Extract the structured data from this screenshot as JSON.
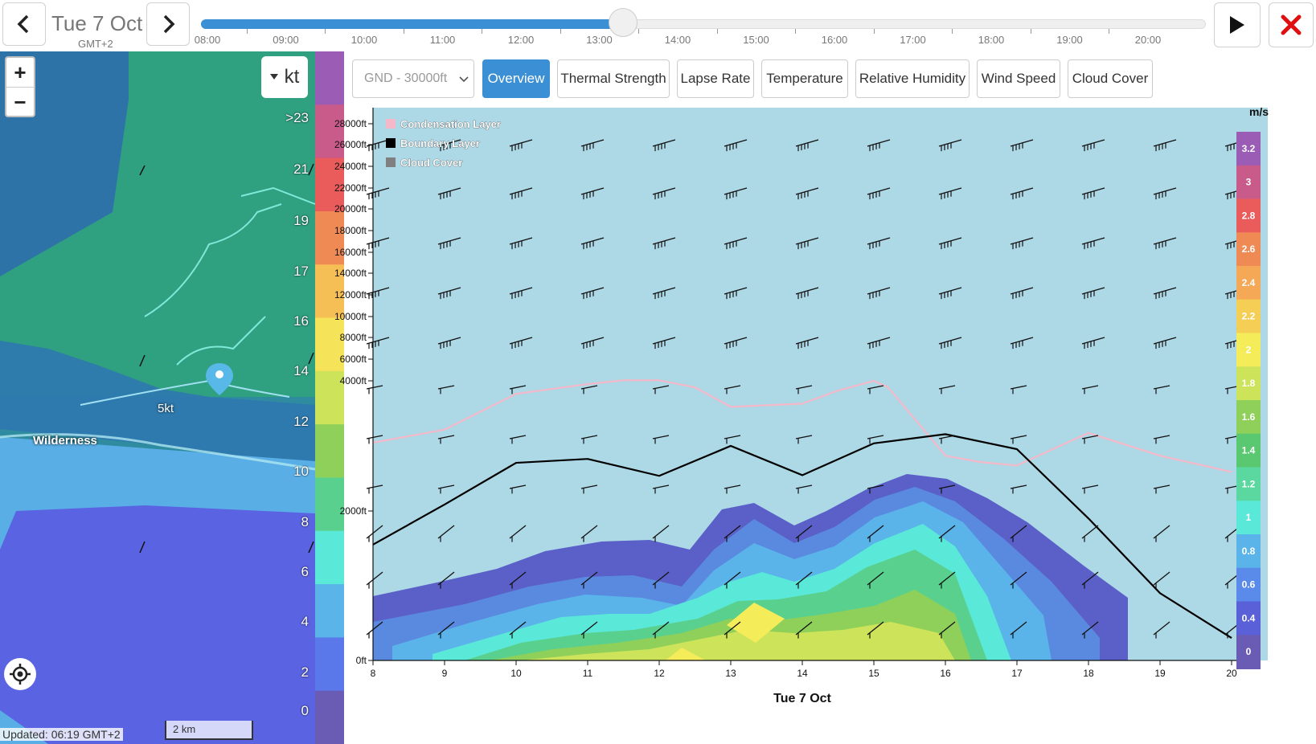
{
  "header": {
    "prev_label": "‹",
    "next_label": "›",
    "date": "Tue 7 Oct",
    "timezone": "GMT+2",
    "play_icon": "play-icon",
    "close_icon": "close-icon"
  },
  "timeline": {
    "labels": [
      "08:00",
      "09:00",
      "10:00",
      "11:00",
      "12:00",
      "13:00",
      "14:00",
      "15:00",
      "16:00",
      "17:00",
      "18:00",
      "19:00",
      "20:00"
    ],
    "progress": 0.42
  },
  "map": {
    "zoom_in": "+",
    "zoom_out": "−",
    "unit": "kt",
    "place_label": "Wilderness",
    "wind_label": "5kt",
    "updated": "Updated: 06:19 GMT+2",
    "scale": "2 km",
    "legend_values": [
      ">23",
      "21",
      "19",
      "17",
      "16",
      "14",
      "12",
      "10",
      "8",
      "6",
      "4",
      "2",
      "0"
    ],
    "legend_colors": [
      "#9a5cb4",
      "#c95b8a",
      "#ea5b5b",
      "#f08a55",
      "#f5bf55",
      "#f5e35a",
      "#cde35a",
      "#8ed05a",
      "#5ad08e",
      "#5ae8d8",
      "#5ab4ea",
      "#5a78ea",
      "#6a5cb4"
    ]
  },
  "controls": {
    "altitude_select": "GND - 30000ft",
    "tabs": [
      {
        "label": "Overview",
        "active": true
      },
      {
        "label": "Thermal Strength",
        "active": false
      },
      {
        "label": "Lapse Rate",
        "active": false
      },
      {
        "label": "Temperature",
        "active": false
      },
      {
        "label": "Relative Humidity",
        "active": false
      },
      {
        "label": "Wind Speed",
        "active": false
      },
      {
        "label": "Cloud Cover",
        "active": false
      }
    ]
  },
  "chart_data": {
    "type": "area",
    "xlabel": "Tue 7 Oct",
    "x_ticks": [
      "8",
      "9",
      "10",
      "11",
      "12",
      "13",
      "14",
      "15",
      "16",
      "17",
      "18",
      "19",
      "20"
    ],
    "y_ticks": [
      "28000ft",
      "26000ft",
      "24000ft",
      "22000ft",
      "20000ft",
      "18000ft",
      "16000ft",
      "14000ft",
      "12000ft",
      "10000ft",
      "8000ft",
      "6000ft",
      "4000ft",
      "2000ft",
      "0ft"
    ],
    "legend": [
      "Condensation Layer",
      "Boundary Layer",
      "Cloud Cover"
    ],
    "legend_colors": [
      "#f4b8c8",
      "#000000",
      "#808080"
    ],
    "colorbar_unit": "m/s",
    "colorbar_values": [
      "3.2",
      "3",
      "2.8",
      "2.6",
      "2.4",
      "2.2",
      "2",
      "1.8",
      "1.6",
      "1.4",
      "1.2",
      "1",
      "0.8",
      "0.6",
      "0.4",
      "0"
    ],
    "colorbar_colors": [
      "#9a5cb4",
      "#c95b8a",
      "#ea5b5b",
      "#f08a55",
      "#f5a855",
      "#f5cf55",
      "#f5ec5a",
      "#cde35a",
      "#8ed05a",
      "#5ac870",
      "#5ad8a0",
      "#5ae8d8",
      "#5ab4ea",
      "#5a8aea",
      "#5a60d8",
      "#6a5cb4"
    ],
    "series": [
      {
        "name": "Condensation Layer",
        "x": [
          8,
          9,
          10,
          11,
          11.5,
          12,
          12.5,
          13,
          14,
          14.5,
          15,
          15.2,
          16,
          16.5,
          17,
          18,
          19,
          20
        ],
        "y": [
          3050,
          3250,
          3800,
          3950,
          4050,
          4050,
          3900,
          3600,
          3650,
          3850,
          4000,
          3900,
          2850,
          2750,
          2700,
          3200,
          2850,
          2600
        ]
      },
      {
        "name": "Boundary Layer",
        "x": [
          8,
          9,
          10,
          11,
          12,
          13,
          14,
          15,
          16,
          17,
          18,
          19,
          20
        ],
        "y": [
          1550,
          2100,
          2740,
          2800,
          2540,
          3000,
          2550,
          3040,
          3180,
          2950,
          1900,
          900,
          300
        ]
      }
    ]
  }
}
